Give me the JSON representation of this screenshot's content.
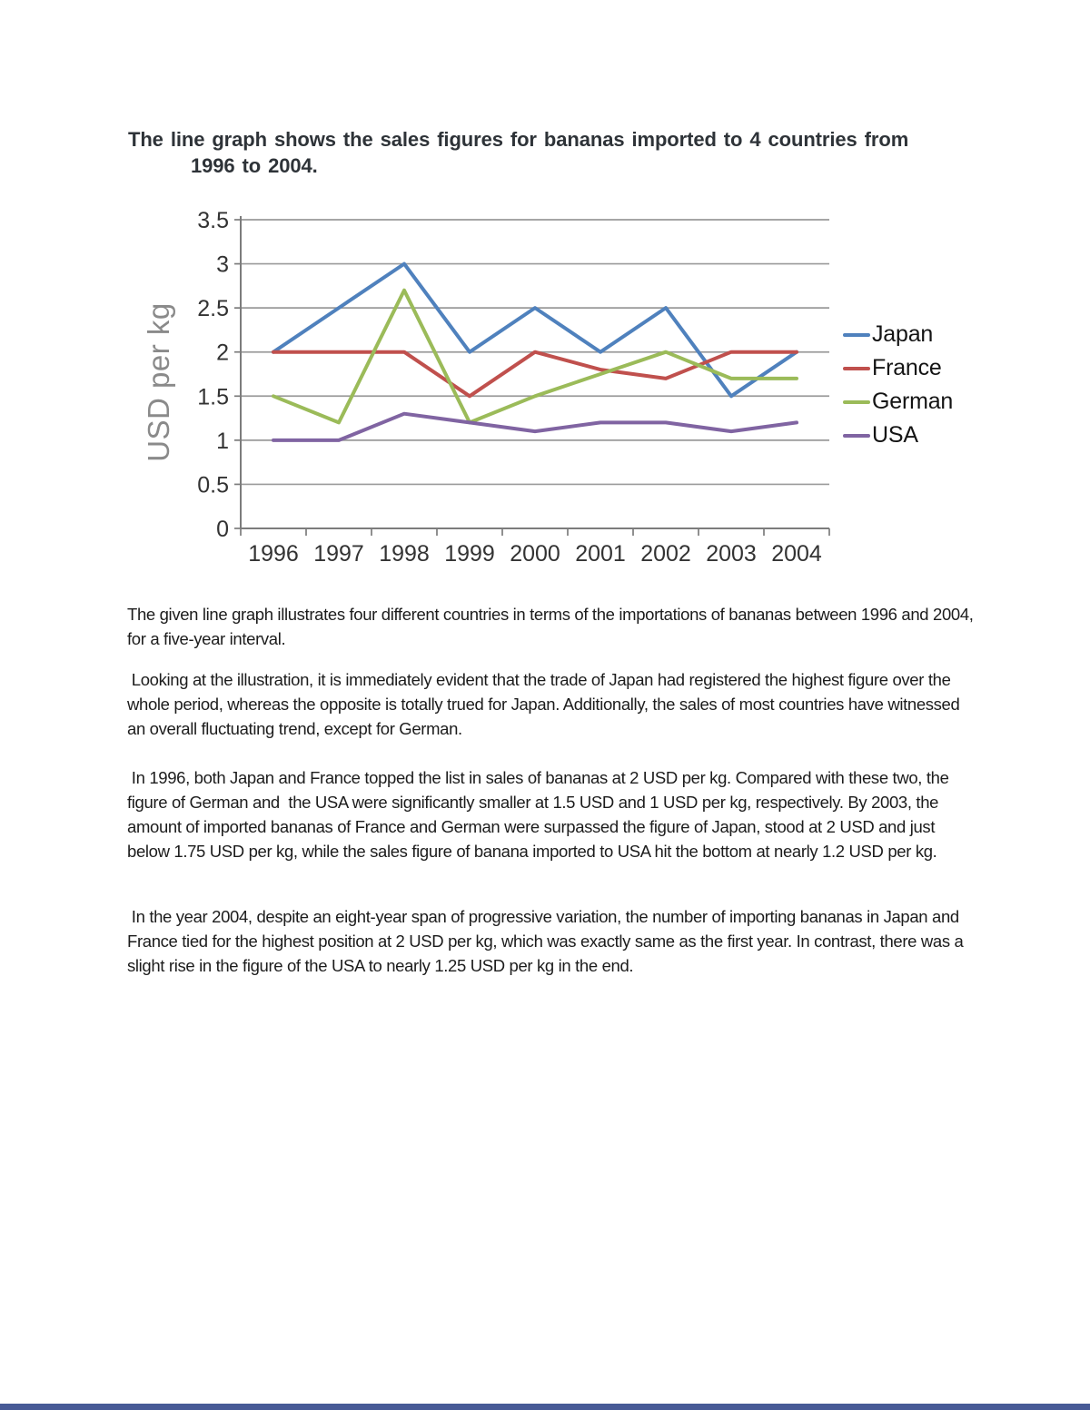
{
  "page": {
    "background": "#ffffff",
    "footer_bar_color": "#475a96"
  },
  "header": {
    "title_lines": [
      "The line graph shows the sales figures for bananas imported to 4 countries from",
      "1996 to 2004."
    ]
  },
  "chart_data": {
    "type": "line",
    "title": "",
    "xlabel": "",
    "ylabel": "USD per kg",
    "categories": [
      "1996",
      "1997",
      "1998",
      "1999",
      "2000",
      "2001",
      "2002",
      "2003",
      "2004"
    ],
    "series": [
      {
        "name": "Japan",
        "color": "#4f81bd",
        "values": [
          2,
          2.5,
          3,
          2,
          2.5,
          2,
          2.5,
          1.5,
          2
        ]
      },
      {
        "name": "France",
        "color": "#c0504d",
        "values": [
          2,
          2,
          2,
          1.5,
          2,
          1.8,
          1.7,
          2,
          2
        ]
      },
      {
        "name": "German",
        "color": "#9bbb59",
        "values": [
          1.5,
          1.2,
          2.7,
          1.2,
          1.5,
          1.75,
          2,
          1.7,
          1.7
        ]
      },
      {
        "name": "USA",
        "color": "#8064a2",
        "values": [
          1,
          1,
          1.3,
          1.2,
          1.1,
          1.2,
          1.2,
          1.1,
          1.2
        ]
      }
    ],
    "ylim": [
      0,
      3.5
    ],
    "yticks": [
      3.5,
      3,
      2.5,
      2,
      1.5,
      1,
      0.5,
      0
    ],
    "ytick_labels": [
      "3.5",
      "3",
      "2.5",
      "2",
      "1.5",
      "1",
      "0.5",
      "0"
    ],
    "grid": "horizontal",
    "legend_position": "right"
  },
  "paragraphs": [
    "The given line graph illustrates four different countries in terms of the importations of bananas between 1996 and 2004, for a five-year interval.",
    " Looking at the illustration, it is immediately evident that the trade of Japan had registered the highest figure over the whole period, whereas the opposite is totally trued for Japan. Additionally, the sales of most countries have witnessed an overall fluctuating trend, except for German.",
    " In 1996, both Japan and France topped the list in sales of bananas at 2 USD per kg. Compared with these two, the figure of German and  the USA were significantly smaller at 1.5 USD and 1 USD per kg, respectively. By 2003, the amount of imported bananas of France and German were surpassed the figure of Japan, stood at 2 USD and just below 1.75 USD per kg, while the sales figure of banana imported to USA hit the bottom at nearly 1.2 USD per kg.",
    " In the year 2004, despite an eight-year span of progressive variation, the number of importing bananas in Japan and France tied for the highest position at 2 USD per kg, which was exactly same as the first year. In contrast, there was a slight rise in the figure of the USA to nearly 1.25 USD per kg in the end."
  ]
}
